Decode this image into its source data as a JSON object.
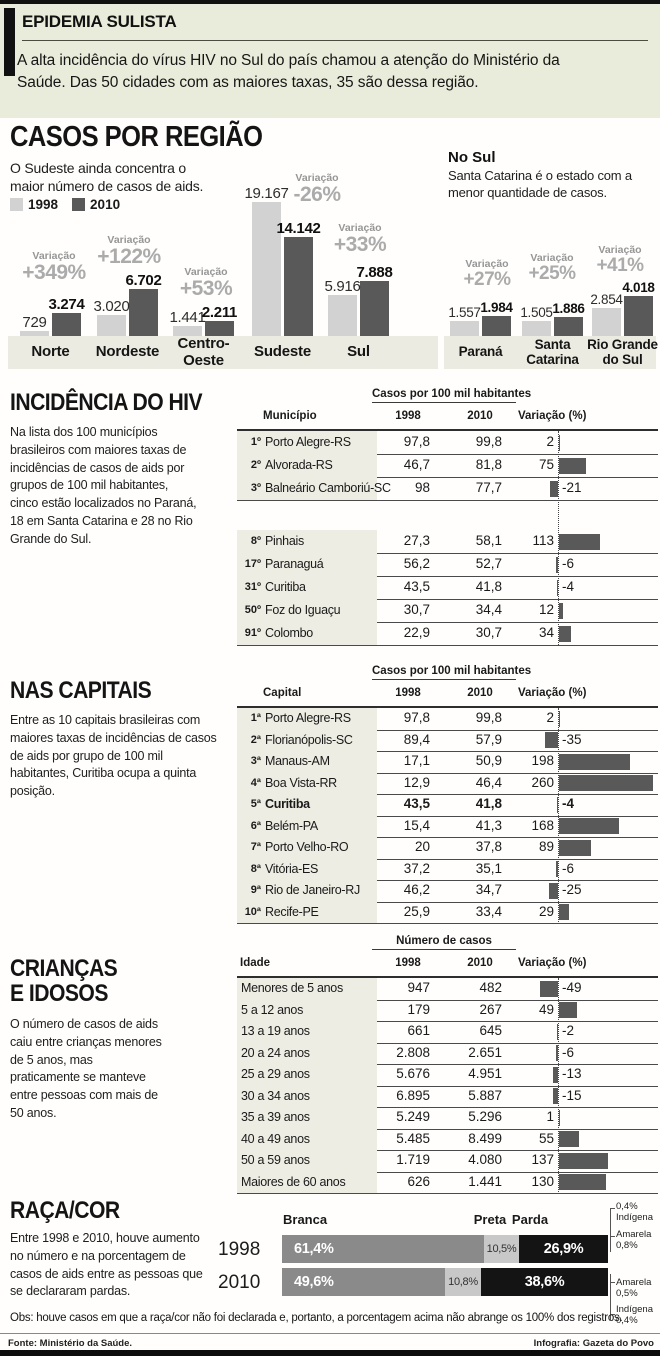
{
  "header": {
    "title": "EPIDEMIA SULISTA",
    "intro": "A alta incidência do vírus HIV no Sul do país chamou a atenção do Ministério da\nSaúde. Das 50 cidades com as maiores taxas, 35 são dessa região."
  },
  "colors": {
    "header_band": "#e9ecda",
    "bar_1998": "#d2d2d2",
    "bar_2010": "#59595a",
    "axis_band": "#ecebe1",
    "row_label_bg": "#eeede3",
    "variacao_text": "#ababab",
    "race_branca": "#8a8a8a",
    "race_preta": "#c8c8c8",
    "race_parda": "#141414"
  },
  "chart_data": [
    {
      "id": "casos_por_regiao",
      "type": "bar",
      "title": "CASOS POR REGIÃO",
      "subtitle": "O Sudeste ainda concentra o\nmaior número de casos de aids.",
      "categories": [
        "Norte",
        "Nordeste",
        "Centro-Oeste",
        "Sudeste",
        "Sul"
      ],
      "series": [
        {
          "name": "1998",
          "values": [
            729,
            3020,
            1441,
            19167,
            5916
          ],
          "labels": [
            "729",
            "3.020",
            "1.441",
            "19.167",
            "5.916"
          ]
        },
        {
          "name": "2010",
          "values": [
            3274,
            6702,
            2211,
            14142,
            7888
          ],
          "labels": [
            "3.274",
            "6.702",
            "2.211",
            "14.142",
            "7.888"
          ]
        }
      ],
      "variacao_label": "Variação",
      "variacao": [
        "+349%",
        "+122%",
        "+53%",
        "-26%",
        "+33%"
      ]
    },
    {
      "id": "no_sul",
      "type": "bar",
      "title": "No Sul",
      "subtitle": "Santa Catarina é o estado com a\nmenor quantidade de casos.",
      "categories": [
        "Paraná",
        "Santa Catarina",
        "Rio Grande do Sul"
      ],
      "series": [
        {
          "name": "1998",
          "values": [
            1557,
            1505,
            2854
          ],
          "labels": [
            "1.557",
            "1.505",
            "2.854"
          ]
        },
        {
          "name": "2010",
          "values": [
            1984,
            1886,
            4018
          ],
          "labels": [
            "1.984",
            "1.886",
            "4.018"
          ]
        }
      ],
      "variacao_label": "Variação",
      "variacao": [
        "+27%",
        "+25%",
        "+41%"
      ]
    },
    {
      "id": "incidencia_hiv",
      "type": "table",
      "section_title": "INCIDÊNCIA DO HIV",
      "section_text": "Na lista dos 100 municípios\nbrasileiros com maiores taxas de\nincidências de casos de aids por\ngrupos de 100 mil habitantes,\ncinco estão localizados no Paraná,\n18 em Santa Catarina e 28 no Rio\nGrande do Sul.",
      "group_header": "Casos por 100 mil habitantes",
      "columns": [
        "Município",
        "1998",
        "2010",
        "Variação (%)"
      ],
      "rows": [
        {
          "rank": "1º",
          "name": "Porto Alegre-RS",
          "v1998": "97,8",
          "v2010": "99,8",
          "var": 2
        },
        {
          "rank": "2º",
          "name": "Alvorada-RS",
          "v1998": "46,7",
          "v2010": "81,8",
          "var": 75
        },
        {
          "rank": "3º",
          "name": "Balneário Camboriú-SC",
          "v1998": "98",
          "v2010": "77,7",
          "var": -21,
          "gap_after": true
        },
        {
          "rank": "8º",
          "name": "Pinhais",
          "v1998": "27,3",
          "v2010": "58,1",
          "var": 113
        },
        {
          "rank": "17º",
          "name": "Paranaguá",
          "v1998": "56,2",
          "v2010": "52,7",
          "var": -6
        },
        {
          "rank": "31º",
          "name": "Curitiba",
          "v1998": "43,5",
          "v2010": "41,8",
          "var": -4
        },
        {
          "rank": "50º",
          "name": "Foz do Iguaçu",
          "v1998": "30,7",
          "v2010": "34,4",
          "var": 12
        },
        {
          "rank": "91º",
          "name": "Colombo",
          "v1998": "22,9",
          "v2010": "30,7",
          "var": 34
        }
      ]
    },
    {
      "id": "nas_capitais",
      "type": "table",
      "section_title": "NAS CAPITAIS",
      "section_text": "Entre as 10 capitais brasileiras com\nmaiores taxas de incidências de casos\nde aids por grupo de 100 mil\nhabitantes, Curitiba ocupa a quinta\nposição.",
      "group_header": "Casos por 100 mil habitantes",
      "columns": [
        "Capital",
        "1998",
        "2010",
        "Variação (%)"
      ],
      "rows": [
        {
          "rank": "1ª",
          "name": "Porto Alegre-RS",
          "v1998": "97,8",
          "v2010": "99,8",
          "var": 2
        },
        {
          "rank": "2ª",
          "name": "Florianópolis-SC",
          "v1998": "89,4",
          "v2010": "57,9",
          "var": -35
        },
        {
          "rank": "3ª",
          "name": "Manaus-AM",
          "v1998": "17,1",
          "v2010": "50,9",
          "var": 198
        },
        {
          "rank": "4ª",
          "name": "Boa Vista-RR",
          "v1998": "12,9",
          "v2010": "46,4",
          "var": 260
        },
        {
          "rank": "5ª",
          "name": "Curitiba",
          "v1998": "43,5",
          "v2010": "41,8",
          "var": -4,
          "bold": true
        },
        {
          "rank": "6ª",
          "name": "Belém-PA",
          "v1998": "15,4",
          "v2010": "41,3",
          "var": 168
        },
        {
          "rank": "7ª",
          "name": "Porto Velho-RO",
          "v1998": "20",
          "v2010": "37,8",
          "var": 89
        },
        {
          "rank": "8ª",
          "name": "Vitória-ES",
          "v1998": "37,2",
          "v2010": "35,1",
          "var": -6
        },
        {
          "rank": "9ª",
          "name": "Rio de Janeiro-RJ",
          "v1998": "46,2",
          "v2010": "34,7",
          "var": -25
        },
        {
          "rank": "10ª",
          "name": "Recife-PE",
          "v1998": "25,9",
          "v2010": "33,4",
          "var": 29
        }
      ]
    },
    {
      "id": "criancas_idosos",
      "type": "table",
      "section_title": "CRIANÇAS\nE IDOSOS",
      "section_text": "O número de casos de aids\ncaiu entre crianças menores\nde 5 anos, mas\npraticamente se manteve\nentre pessoas com mais de\n50 anos.",
      "group_header": "Número de casos",
      "columns": [
        "Idade",
        "1998",
        "2010",
        "Variação (%)"
      ],
      "rows": [
        {
          "name": "Menores de 5 anos",
          "v1998": "947",
          "v2010": "482",
          "var": -49
        },
        {
          "name": "5 a 12 anos",
          "v1998": "179",
          "v2010": "267",
          "var": 49
        },
        {
          "name": "13 a 19 anos",
          "v1998": "661",
          "v2010": "645",
          "var": -2
        },
        {
          "name": "20 a 24 anos",
          "v1998": "2.808",
          "v2010": "2.651",
          "var": -6
        },
        {
          "name": "25 a 29 anos",
          "v1998": "5.676",
          "v2010": "4.951",
          "var": -13
        },
        {
          "name": "30 a 34 anos",
          "v1998": "6.895",
          "v2010": "5.887",
          "var": -15
        },
        {
          "name": "35 a 39 anos",
          "v1998": "5.249",
          "v2010": "5.296",
          "var": 1
        },
        {
          "name": "40 a 49 anos",
          "v1998": "5.485",
          "v2010": "8.499",
          "var": 55
        },
        {
          "name": "50 a 59 anos",
          "v1998": "1.719",
          "v2010": "4.080",
          "var": 137
        },
        {
          "name": "Maiores de 60 anos",
          "v1998": "626",
          "v2010": "1.441",
          "var": 130
        }
      ]
    },
    {
      "id": "raca_cor",
      "type": "bar",
      "stacked": true,
      "section_title": "RAÇA/COR",
      "section_text": "Entre 1998 e 2010, houve aumento\nno número e na porcentagem de\ncasos de aids entre as pessoas que\nse declararam pardas.",
      "segments": [
        "Branca",
        "Preta",
        "Parda"
      ],
      "series": [
        {
          "year": "1998",
          "values": [
            61.4,
            10.5,
            26.9
          ],
          "labels": [
            "61,4%",
            "10,5%",
            "26,9%"
          ]
        },
        {
          "year": "2010",
          "values": [
            49.6,
            10.8,
            38.6
          ],
          "labels": [
            "49,6%",
            "10,8%",
            "38,6%"
          ]
        }
      ],
      "annotations_1998": [
        [
          "0,4%",
          "Indígena"
        ],
        [
          "Amarela",
          "0,8%"
        ]
      ],
      "annotations_2010": [
        [
          "Amarela",
          "0,5%"
        ],
        [
          "Indígena",
          "0,4%"
        ]
      ]
    }
  ],
  "footer": {
    "obs": "Obs: houve casos em que a raça/cor não foi declarada e, portanto, a porcentagem acima não abrange os 100% dos registros.",
    "fonte": "Fonte: Ministério da Saúde.",
    "credit": "Infografia: Gazeta do Povo"
  }
}
